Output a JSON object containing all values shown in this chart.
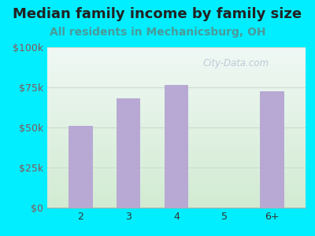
{
  "title": "Median family income by family size",
  "subtitle": "All residents in Mechanicsburg, OH",
  "categories": [
    "2",
    "3",
    "4",
    "5",
    "6+"
  ],
  "values": [
    51000,
    68000,
    76500,
    0,
    72500
  ],
  "bar_color": "#b8a9d4",
  "background_outer": "#00eeff",
  "title_color": "#222222",
  "subtitle_color": "#4a9a9a",
  "tick_color": "#885555",
  "ylim": [
    0,
    100000
  ],
  "yticks": [
    0,
    25000,
    50000,
    75000,
    100000
  ],
  "ytick_labels": [
    "$0",
    "$25k",
    "$50k",
    "$75k",
    "$100k"
  ],
  "watermark": "City-Data.com",
  "title_fontsize": 13,
  "subtitle_fontsize": 10,
  "grid_color": "#ccddcc"
}
